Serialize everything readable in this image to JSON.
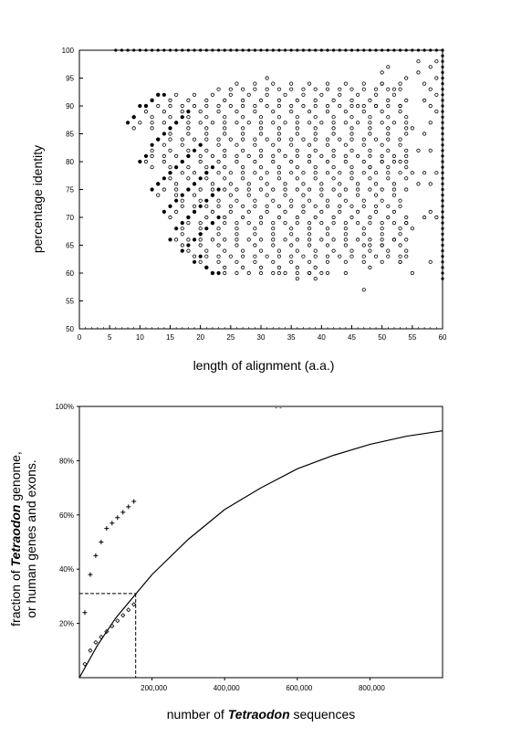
{
  "chart_data": [
    {
      "type": "scatter",
      "title": "",
      "xlabel": "length of alignment (a.a.)",
      "ylabel": "percentage identity",
      "xlim": [
        0,
        60
      ],
      "ylim": [
        50,
        100
      ],
      "xticks": [
        0,
        5,
        10,
        15,
        20,
        25,
        30,
        35,
        40,
        45,
        50,
        55,
        60
      ],
      "yticks": [
        50,
        55,
        60,
        65,
        70,
        75,
        80,
        85,
        90,
        95,
        100
      ],
      "grid": false,
      "series": [
        {
          "marker": "filled-circle",
          "points": [
            [
              8,
              87
            ],
            [
              9,
              88
            ],
            [
              10,
              90
            ],
            [
              11,
              90
            ],
            [
              12,
              91
            ],
            [
              13,
              92
            ],
            [
              14,
              92
            ],
            [
              10,
              80
            ],
            [
              11,
              81
            ],
            [
              12,
              83
            ],
            [
              13,
              84
            ],
            [
              14,
              85
            ],
            [
              15,
              86
            ],
            [
              16,
              87
            ],
            [
              17,
              88
            ],
            [
              18,
              89
            ],
            [
              12,
              75
            ],
            [
              13,
              76
            ],
            [
              14,
              77
            ],
            [
              15,
              78
            ],
            [
              16,
              79
            ],
            [
              17,
              80
            ],
            [
              18,
              81
            ],
            [
              19,
              82
            ],
            [
              20,
              83
            ],
            [
              14,
              71
            ],
            [
              15,
              72
            ],
            [
              16,
              73
            ],
            [
              17,
              74
            ],
            [
              18,
              75
            ],
            [
              19,
              76
            ],
            [
              20,
              77
            ],
            [
              21,
              78
            ],
            [
              22,
              79
            ],
            [
              15,
              66
            ],
            [
              16,
              68
            ],
            [
              17,
              69
            ],
            [
              18,
              70
            ],
            [
              19,
              71
            ],
            [
              20,
              72
            ],
            [
              21,
              73
            ],
            [
              22,
              74
            ],
            [
              23,
              75
            ],
            [
              17,
              64
            ],
            [
              18,
              65
            ],
            [
              19,
              66
            ],
            [
              20,
              67
            ],
            [
              21,
              68
            ],
            [
              22,
              69
            ],
            [
              23,
              70
            ],
            [
              19,
              62
            ],
            [
              20,
              63
            ],
            [
              21,
              61
            ],
            [
              22,
              60
            ],
            [
              23,
              60
            ]
          ]
        },
        {
          "marker": "open-circle",
          "points": [
            [
              47,
              57
            ],
            [
              55,
              60
            ],
            [
              53,
              62
            ],
            [
              54,
              63
            ],
            [
              58,
              62
            ],
            [
              48,
              61
            ],
            [
              44,
              60
            ],
            [
              33,
              60
            ],
            [
              36,
              59
            ],
            [
              38,
              60
            ],
            [
              39,
              59
            ],
            [
              41,
              60
            ],
            [
              57,
              70
            ],
            [
              58,
              71
            ],
            [
              59,
              70
            ],
            [
              55,
              68
            ],
            [
              54,
              69
            ],
            [
              48,
              65
            ],
            [
              50,
              65
            ],
            [
              52,
              66
            ],
            [
              56,
              76
            ],
            [
              58,
              76
            ],
            [
              55,
              78
            ],
            [
              57,
              78
            ],
            [
              59,
              78
            ],
            [
              56,
              82
            ],
            [
              58,
              82
            ],
            [
              50,
              80
            ],
            [
              52,
              80
            ],
            [
              54,
              80
            ],
            [
              48,
              79
            ],
            [
              46,
              90
            ],
            [
              49,
              90
            ],
            [
              53,
              90
            ],
            [
              57,
              85
            ],
            [
              55,
              86
            ],
            [
              58,
              87
            ],
            [
              52,
              93
            ],
            [
              50,
              94
            ],
            [
              54,
              95
            ],
            [
              56,
              96
            ],
            [
              58,
              97
            ],
            [
              50,
              96
            ],
            [
              51,
              97
            ],
            [
              56,
              98
            ],
            [
              57,
              94
            ],
            [
              59,
              92
            ],
            [
              59,
              89
            ],
            [
              58,
              90
            ],
            [
              57,
              91
            ],
            [
              58,
              93
            ],
            [
              59,
              95
            ],
            [
              59,
              98
            ]
          ],
          "generated_band": "open circles fill region between filled-dot frontier and length 60, identity 60–97"
        },
        {
          "marker": "filled-circle",
          "name": "",
          "points_row_100": [
            6,
            7,
            8,
            9,
            10,
            11,
            12,
            13,
            14,
            15,
            16,
            17,
            18,
            19,
            20,
            21,
            22,
            23,
            24,
            25,
            26,
            27,
            28,
            29,
            30,
            31,
            32,
            33,
            34,
            35,
            36,
            37,
            38,
            39,
            40,
            41,
            42,
            43,
            44,
            45,
            46,
            47,
            48,
            49,
            50,
            51,
            52,
            53,
            54,
            55,
            56,
            57,
            58,
            59,
            60
          ]
        },
        {
          "marker": "filled-circle",
          "name": "",
          "points_col_60": [
            59,
            60,
            61,
            62,
            63,
            64,
            65,
            66,
            67,
            68,
            69,
            70,
            71,
            72,
            73,
            74,
            75,
            76,
            77,
            78,
            79,
            80,
            81,
            82,
            83,
            84,
            85,
            86,
            87,
            88,
            89,
            90,
            91,
            92,
            93,
            94,
            95,
            96,
            97,
            98,
            99,
            100
          ]
        }
      ]
    },
    {
      "type": "line",
      "title": "",
      "xlabel_parts": [
        "number of ",
        "Tetraodon",
        " sequences"
      ],
      "ylabel_parts": [
        "fraction of ",
        "Tetraodon",
        " genome,",
        "or human genes and exons."
      ],
      "xlim": [
        0,
        1000000
      ],
      "ylim": [
        0,
        100
      ],
      "xticks": [
        200000,
        400000,
        600000,
        800000
      ],
      "xtick_labels": [
        "200,000",
        "400,000",
        "600,000",
        "800,000"
      ],
      "yticks": [
        20,
        40,
        60,
        80,
        100
      ],
      "ytick_labels": [
        "20%",
        "40%",
        "60%",
        "80%",
        "100%"
      ],
      "grid": false,
      "curve": {
        "x": [
          0,
          50000,
          100000,
          150000,
          200000,
          300000,
          400000,
          500000,
          600000,
          700000,
          800000,
          900000,
          1000000
        ],
        "y": [
          0,
          12,
          22,
          30,
          38,
          51,
          62,
          70,
          77,
          82,
          86,
          89,
          91
        ]
      },
      "reference_lines": {
        "x": 155000,
        "y": 31
      },
      "series": [
        {
          "marker": "plus",
          "x": [
            15000,
            30000,
            45000,
            60000,
            75000,
            90000,
            105000,
            120000,
            135000,
            150000
          ],
          "y": [
            24,
            38,
            45,
            50,
            55,
            57,
            59,
            61,
            63,
            65
          ]
        },
        {
          "marker": "open-diamond",
          "x": [
            15000,
            30000,
            45000,
            60000,
            75000,
            90000,
            105000,
            120000,
            135000,
            150000
          ],
          "y": [
            5,
            10,
            13,
            15,
            17,
            19,
            21,
            23,
            25,
            27
          ]
        }
      ],
      "top_mark": "- -"
    }
  ]
}
